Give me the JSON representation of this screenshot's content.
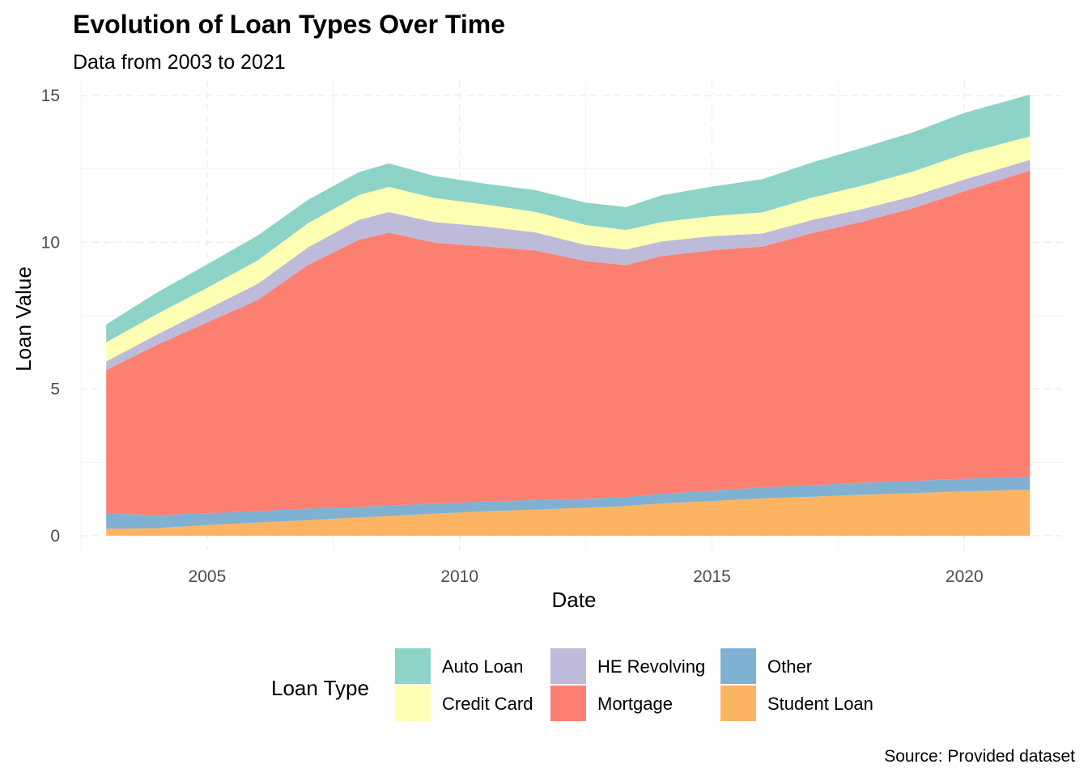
{
  "chart_data": {
    "type": "area",
    "stacked": true,
    "title": "Evolution of Loan Types Over Time",
    "subtitle": "Data from 2003 to 2021",
    "xlabel": "Date",
    "ylabel": "Loan Value",
    "caption": "Source: Provided dataset",
    "xlim": [
      2002.5,
      2022.0
    ],
    "ylim": [
      -0.5,
      15.5
    ],
    "x_ticks": [
      2005,
      2010,
      2015,
      2020
    ],
    "y_ticks": [
      0,
      5,
      10,
      15
    ],
    "grid": true,
    "legend": {
      "title": "Loan Type",
      "position": "bottom"
    },
    "x": [
      2003.0,
      2004.0,
      2005.0,
      2006.0,
      2007.0,
      2008.0,
      2008.6,
      2009.5,
      2010.5,
      2011.5,
      2012.5,
      2013.3,
      2014.0,
      2015.0,
      2016.0,
      2017.0,
      2018.0,
      2019.0,
      2020.0,
      2021.3
    ],
    "series": [
      {
        "name": "Student Loan",
        "color": "#fdb462",
        "values": [
          0.24,
          0.26,
          0.36,
          0.45,
          0.53,
          0.62,
          0.67,
          0.75,
          0.83,
          0.89,
          0.95,
          1.01,
          1.1,
          1.18,
          1.27,
          1.33,
          1.4,
          1.45,
          1.51,
          1.57
        ]
      },
      {
        "name": "Other",
        "color": "#80b1d3",
        "values": [
          0.52,
          0.44,
          0.41,
          0.38,
          0.4,
          0.36,
          0.36,
          0.34,
          0.33,
          0.33,
          0.31,
          0.31,
          0.33,
          0.35,
          0.38,
          0.39,
          0.41,
          0.42,
          0.43,
          0.44
        ]
      },
      {
        "name": "Mortgage",
        "color": "#fb8072",
        "values": [
          4.88,
          5.8,
          6.5,
          7.2,
          8.3,
          9.1,
          9.3,
          8.9,
          8.7,
          8.5,
          8.1,
          7.9,
          8.1,
          8.2,
          8.2,
          8.6,
          8.9,
          9.3,
          9.8,
          10.44
        ]
      },
      {
        "name": "HE Revolving",
        "color": "#bebada",
        "values": [
          0.3,
          0.35,
          0.45,
          0.55,
          0.6,
          0.68,
          0.7,
          0.7,
          0.68,
          0.62,
          0.55,
          0.53,
          0.5,
          0.48,
          0.45,
          0.45,
          0.43,
          0.41,
          0.4,
          0.36
        ]
      },
      {
        "name": "Credit Card",
        "color": "#ffffb3",
        "values": [
          0.65,
          0.7,
          0.73,
          0.8,
          0.82,
          0.85,
          0.86,
          0.82,
          0.75,
          0.7,
          0.68,
          0.67,
          0.66,
          0.68,
          0.72,
          0.76,
          0.8,
          0.84,
          0.88,
          0.8
        ]
      },
      {
        "name": "Auto Loan",
        "color": "#8dd3c7",
        "values": [
          0.61,
          0.73,
          0.8,
          0.85,
          0.8,
          0.78,
          0.8,
          0.75,
          0.71,
          0.74,
          0.76,
          0.78,
          0.91,
          1.01,
          1.13,
          1.2,
          1.29,
          1.34,
          1.39,
          1.43
        ]
      }
    ],
    "legend_order": [
      "Auto Loan",
      "Credit Card",
      "HE Revolving",
      "Mortgage",
      "Other",
      "Student Loan"
    ]
  }
}
